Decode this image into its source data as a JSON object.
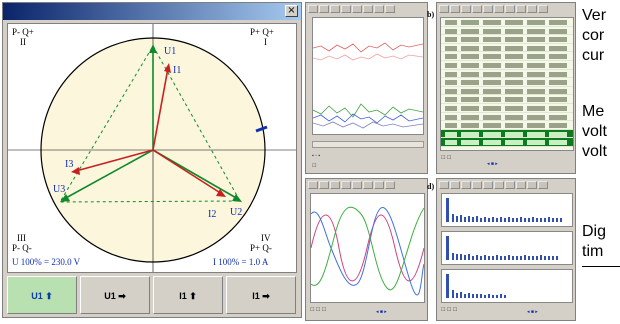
{
  "phasor_window": {
    "close_glyph": "×",
    "quadrants": {
      "top_left": {
        "sign": "P- Q+",
        "numeral": "II"
      },
      "top_right": {
        "sign": "P+ Q+",
        "numeral": "I"
      },
      "bottom_left": {
        "sign": "P- Q-",
        "numeral": "III"
      },
      "bottom_right": {
        "sign": "P+ Q-",
        "numeral": "IV"
      }
    },
    "scale_voltage": "U 100% = 230.0 V",
    "scale_current": "I 100% = 1.0 A",
    "phasor_labels": {
      "u1": "U1",
      "u2": "U2",
      "u3": "U3",
      "i1": "I1",
      "i2": "I2",
      "i3": "I3"
    },
    "buttons": [
      {
        "label": "U1 ⬆",
        "active": true
      },
      {
        "label": "U1 ➡",
        "active": false
      },
      {
        "label": "I1 ⬆",
        "active": false
      },
      {
        "label": "I1 ➡",
        "active": false
      }
    ],
    "colors": {
      "voltage": "#0e8a2a",
      "current": "#c82020",
      "label_blue": "#1030b0",
      "circle_fill": "#fbf6dc"
    }
  },
  "panels": {
    "b": "b)",
    "d": "d)"
  },
  "side_text": [
    {
      "lines": [
        "Ver",
        "cor",
        "cur"
      ]
    },
    {
      "lines": [
        "Me",
        "volt",
        "volt"
      ]
    },
    {
      "lines": [
        "Dig",
        "tim"
      ]
    }
  ]
}
